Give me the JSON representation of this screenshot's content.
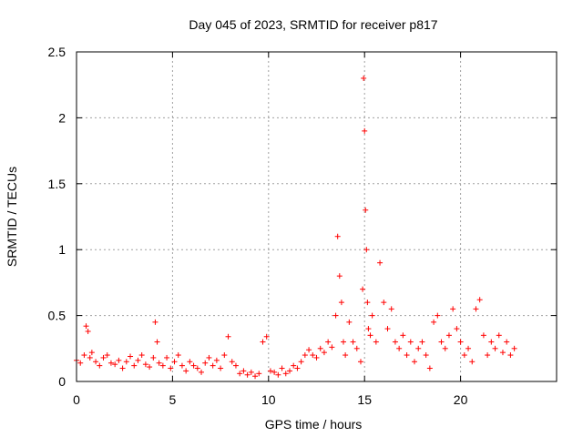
{
  "chart_data": {
    "type": "scatter",
    "title": "Day 045 of 2023, SRMTID for receiver p817",
    "xlabel": "GPS time / hours",
    "ylabel": "SRMTID / TECUs",
    "xlim": [
      0,
      25
    ],
    "ylim": [
      0,
      2.5
    ],
    "xticks": [
      0,
      5,
      10,
      15,
      20
    ],
    "xtick_labels": [
      "0",
      "5",
      "10",
      "15",
      "20"
    ],
    "yticks": [
      0,
      0.5,
      1,
      1.5,
      2,
      2.5
    ],
    "ytick_labels": [
      "0",
      "0.5",
      "1",
      "1.5",
      "2",
      "2.5"
    ],
    "grid": true,
    "marker": "plus",
    "series": [
      {
        "name": "SRMTID",
        "color": "#ff0000",
        "x": [
          0.0,
          0.2,
          0.4,
          0.5,
          0.6,
          0.7,
          0.8,
          1.0,
          1.2,
          1.4,
          1.6,
          1.8,
          2.0,
          2.2,
          2.4,
          2.6,
          2.8,
          3.0,
          3.2,
          3.4,
          3.6,
          3.8,
          4.0,
          4.1,
          4.2,
          4.3,
          4.5,
          4.7,
          4.9,
          5.1,
          5.3,
          5.5,
          5.7,
          5.9,
          6.1,
          6.3,
          6.5,
          6.7,
          6.9,
          7.1,
          7.3,
          7.5,
          7.7,
          7.9,
          8.1,
          8.3,
          8.5,
          8.7,
          8.9,
          9.1,
          9.3,
          9.5,
          9.7,
          9.9,
          10.1,
          10.3,
          10.5,
          10.7,
          10.9,
          11.1,
          11.3,
          11.5,
          11.7,
          11.9,
          12.1,
          12.3,
          12.5,
          12.7,
          12.9,
          13.1,
          13.3,
          13.5,
          13.6,
          13.7,
          13.8,
          13.9,
          14.0,
          14.2,
          14.4,
          14.6,
          14.8,
          14.9,
          14.95,
          15.0,
          15.05,
          15.1,
          15.15,
          15.2,
          15.3,
          15.4,
          15.6,
          15.8,
          16.0,
          16.2,
          16.4,
          16.6,
          16.8,
          17.0,
          17.2,
          17.4,
          17.6,
          17.8,
          18.0,
          18.2,
          18.4,
          18.6,
          18.8,
          19.0,
          19.2,
          19.4,
          19.6,
          19.8,
          20.0,
          20.2,
          20.4,
          20.6,
          20.8,
          21.0,
          21.2,
          21.4,
          21.6,
          21.8,
          22.0,
          22.2,
          22.4,
          22.6,
          22.8
        ],
        "y": [
          0.16,
          0.14,
          0.2,
          0.42,
          0.38,
          0.18,
          0.22,
          0.15,
          0.12,
          0.18,
          0.2,
          0.14,
          0.13,
          0.16,
          0.1,
          0.15,
          0.19,
          0.12,
          0.16,
          0.2,
          0.13,
          0.11,
          0.18,
          0.45,
          0.3,
          0.14,
          0.12,
          0.18,
          0.1,
          0.15,
          0.2,
          0.12,
          0.08,
          0.15,
          0.12,
          0.1,
          0.07,
          0.14,
          0.18,
          0.12,
          0.16,
          0.1,
          0.2,
          0.34,
          0.15,
          0.12,
          0.06,
          0.08,
          0.05,
          0.07,
          0.04,
          0.06,
          0.3,
          0.34,
          0.08,
          0.07,
          0.05,
          0.1,
          0.06,
          0.08,
          0.12,
          0.1,
          0.15,
          0.2,
          0.24,
          0.2,
          0.18,
          0.25,
          0.22,
          0.3,
          0.26,
          0.5,
          1.1,
          0.8,
          0.6,
          0.3,
          0.2,
          0.45,
          0.3,
          0.25,
          0.15,
          0.7,
          2.3,
          1.9,
          1.3,
          1.0,
          0.6,
          0.4,
          0.35,
          0.5,
          0.3,
          0.9,
          0.6,
          0.4,
          0.55,
          0.3,
          0.25,
          0.35,
          0.2,
          0.3,
          0.15,
          0.25,
          0.3,
          0.2,
          0.1,
          0.45,
          0.5,
          0.3,
          0.25,
          0.35,
          0.55,
          0.4,
          0.3,
          0.2,
          0.25,
          0.15,
          0.55,
          0.62,
          0.35,
          0.2,
          0.3,
          0.25,
          0.35,
          0.22,
          0.3,
          0.2,
          0.25
        ]
      }
    ]
  }
}
